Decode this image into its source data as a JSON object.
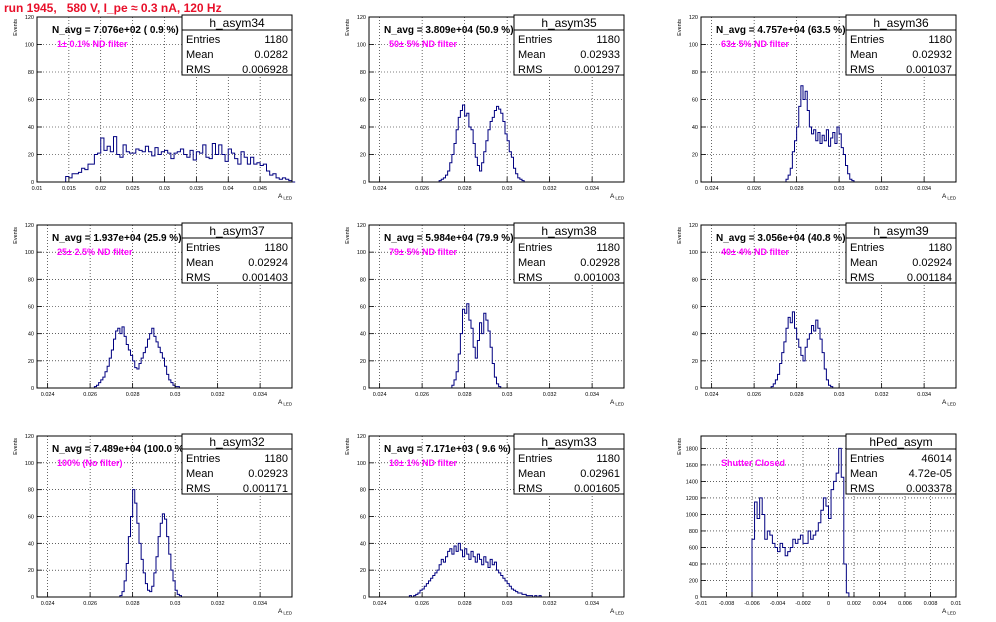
{
  "page_title": "run 1945,   580 V, I_pe ≈ 0.3 nA, 120 Hz",
  "colors": {
    "title": "#e8102a",
    "histogram": "#000080",
    "note": "#ff00ff",
    "frame": "#000000",
    "grid": "#000000"
  },
  "chart_data": [
    {
      "type": "bar",
      "name": "h_asym34",
      "navg_label": "N_avg = 7.076e+02 ( 0.9 %)",
      "note": "1± 0.1% ND filter",
      "stats": [
        [
          "Entries",
          "1180"
        ],
        [
          "Mean",
          "0.0282"
        ],
        [
          "RMS",
          "0.006928"
        ]
      ],
      "ylabel": "Events",
      "xlabel": "A_LED",
      "xlim": [
        0.01,
        0.05
      ],
      "ylim": [
        0,
        120
      ],
      "xticks": [
        "0.01",
        "0.015",
        "0.02",
        "0.025",
        "0.03",
        "0.035",
        "0.04",
        "0.045"
      ],
      "xtick_values": [
        0.01,
        0.015,
        0.02,
        0.025,
        0.03,
        0.035,
        0.04,
        0.045
      ],
      "yticks": [
        0,
        20,
        40,
        60,
        80,
        100,
        120
      ],
      "bin_start": 0.0125,
      "bin_width": 0.0005,
      "values": [
        0,
        0,
        0,
        0,
        4,
        3,
        6,
        6,
        7,
        10,
        9,
        13,
        13,
        20,
        21,
        32,
        23,
        26,
        22,
        33,
        20,
        18,
        27,
        22,
        21,
        21,
        24,
        23,
        22,
        26,
        22,
        19,
        25,
        20,
        22,
        23,
        21,
        17,
        21,
        22,
        24,
        20,
        18,
        23,
        16,
        22,
        21,
        27,
        18,
        17,
        28,
        20,
        27,
        20,
        15,
        24,
        21,
        17,
        13,
        22,
        18,
        13,
        18,
        13,
        14,
        12,
        13,
        8,
        5,
        6,
        3,
        2,
        3,
        2,
        1,
        0
      ]
    },
    {
      "type": "bar",
      "name": "h_asym35",
      "navg_label": "N_avg = 3.809e+04 (50.9 %)",
      "note": "50± 5% ND filter",
      "stats": [
        [
          "Entries",
          "1180"
        ],
        [
          "Mean",
          "0.02933"
        ],
        [
          "RMS",
          "0.001297"
        ]
      ],
      "ylabel": "Events",
      "xlabel": "A_LED",
      "xlim": [
        0.0235,
        0.0355
      ],
      "ylim": [
        0,
        120
      ],
      "xticks": [
        "0.024",
        "0.026",
        "0.028",
        "0.03",
        "0.032",
        "0.034"
      ],
      "xtick_values": [
        0.024,
        0.026,
        0.028,
        0.03,
        0.032,
        0.034
      ],
      "yticks": [
        0,
        20,
        40,
        60,
        80,
        100,
        120
      ],
      "bin_start": 0.0268,
      "bin_width": 0.0001,
      "values": [
        1,
        2,
        3,
        5,
        8,
        14,
        20,
        28,
        38,
        47,
        52,
        56,
        48,
        50,
        40,
        38,
        28,
        18,
        12,
        8,
        14,
        22,
        30,
        38,
        44,
        47,
        52,
        55,
        53,
        50,
        44,
        35,
        30,
        22,
        18,
        10,
        6,
        3,
        2,
        1
      ]
    },
    {
      "type": "bar",
      "name": "h_asym36",
      "navg_label": "N_avg = 4.757e+04 (63.5 %)",
      "note": "63± 5% ND filter",
      "stats": [
        [
          "Entries",
          "1180"
        ],
        [
          "Mean",
          "0.02932"
        ],
        [
          "RMS",
          "0.001037"
        ]
      ],
      "ylabel": "Events",
      "xlabel": "A_LED",
      "xlim": [
        0.0235,
        0.0355
      ],
      "ylim": [
        0,
        120
      ],
      "xticks": [
        "0.024",
        "0.026",
        "0.028",
        "0.03",
        "0.032",
        "0.034"
      ],
      "xtick_values": [
        0.024,
        0.026,
        0.028,
        0.03,
        0.032,
        0.034
      ],
      "yticks": [
        0,
        20,
        40,
        60,
        80,
        100,
        120
      ],
      "bin_start": 0.0275,
      "bin_width": 0.0001,
      "values": [
        2,
        5,
        10,
        22,
        30,
        40,
        55,
        70,
        60,
        66,
        52,
        40,
        35,
        38,
        30,
        36,
        28,
        34,
        30,
        38,
        26,
        32,
        36,
        28,
        40,
        35,
        25,
        20,
        12,
        6,
        2,
        1
      ]
    },
    {
      "type": "bar",
      "name": "h_asym37",
      "navg_label": "N_avg = 1.937e+04 (25.9 %)",
      "note": "25± 2.5% ND filter",
      "stats": [
        [
          "Entries",
          "1180"
        ],
        [
          "Mean",
          "0.02924"
        ],
        [
          "RMS",
          "0.001403"
        ]
      ],
      "ylabel": "Events",
      "xlabel": "A_LED",
      "xlim": [
        0.0235,
        0.0355
      ],
      "ylim": [
        0,
        120
      ],
      "xticks": [
        "0.024",
        "0.026",
        "0.028",
        "0.03",
        "0.032",
        "0.034"
      ],
      "xtick_values": [
        0.024,
        0.026,
        0.028,
        0.03,
        0.032,
        0.034
      ],
      "yticks": [
        0,
        20,
        40,
        60,
        80,
        100,
        120
      ],
      "bin_start": 0.0262,
      "bin_width": 0.0001,
      "values": [
        1,
        2,
        4,
        6,
        8,
        12,
        16,
        22,
        28,
        36,
        42,
        44,
        40,
        45,
        38,
        32,
        28,
        24,
        20,
        15,
        14,
        18,
        22,
        26,
        30,
        36,
        40,
        44,
        38,
        34,
        30,
        26,
        22,
        16,
        10,
        6,
        4,
        2,
        1,
        1,
        0
      ]
    },
    {
      "type": "bar",
      "name": "h_asym38",
      "navg_label": "N_avg = 5.984e+04 (79.9 %)",
      "note": "79± 5% ND filter",
      "stats": [
        [
          "Entries",
          "1180"
        ],
        [
          "Mean",
          "0.02928"
        ],
        [
          "RMS",
          "0.001003"
        ]
      ],
      "ylabel": "Events",
      "xlabel": "A_LED",
      "xlim": [
        0.0235,
        0.0355
      ],
      "ylim": [
        0,
        120
      ],
      "xticks": [
        "0.024",
        "0.026",
        "0.028",
        "0.03",
        "0.032",
        "0.034"
      ],
      "xtick_values": [
        0.024,
        0.026,
        0.028,
        0.03,
        0.032,
        0.034
      ],
      "yticks": [
        0,
        20,
        40,
        60,
        80,
        100,
        120
      ],
      "bin_start": 0.0274,
      "bin_width": 0.0001,
      "values": [
        2,
        6,
        12,
        25,
        40,
        58,
        55,
        62,
        50,
        44,
        30,
        22,
        35,
        48,
        40,
        55,
        50,
        42,
        30,
        18,
        8,
        3,
        1
      ]
    },
    {
      "type": "bar",
      "name": "h_asym39",
      "navg_label": "N_avg = 3.056e+04 (40.8 %)",
      "note": "40± 4% ND filter",
      "stats": [
        [
          "Entries",
          "1180"
        ],
        [
          "Mean",
          "0.02924"
        ],
        [
          "RMS",
          "0.001184"
        ]
      ],
      "ylabel": "Events",
      "xlabel": "A_LED",
      "xlim": [
        0.0235,
        0.0355
      ],
      "ylim": [
        0,
        120
      ],
      "xticks": [
        "0.024",
        "0.026",
        "0.028",
        "0.03",
        "0.032",
        "0.034"
      ],
      "xtick_values": [
        0.024,
        0.026,
        0.028,
        0.03,
        0.032,
        0.034
      ],
      "yticks": [
        0,
        20,
        40,
        60,
        80,
        100,
        120
      ],
      "bin_start": 0.0268,
      "bin_width": 0.0001,
      "values": [
        1,
        3,
        6,
        10,
        18,
        26,
        34,
        44,
        52,
        48,
        56,
        44,
        36,
        30,
        24,
        20,
        30,
        36,
        40,
        46,
        42,
        50,
        44,
        36,
        26,
        14,
        6,
        2,
        1
      ]
    },
    {
      "type": "bar",
      "name": "h_asym32",
      "navg_label": "N_avg = 7.489e+04 (100.0 %)",
      "note": "100% (No filter)",
      "stats": [
        [
          "Entries",
          "1180"
        ],
        [
          "Mean",
          "0.02923"
        ],
        [
          "RMS",
          "0.001171"
        ]
      ],
      "ylabel": "Events",
      "xlabel": "A_LED",
      "xlim": [
        0.0235,
        0.0355
      ],
      "ylim": [
        0,
        120
      ],
      "xticks": [
        "0.024",
        "0.026",
        "0.028",
        "0.03",
        "0.032",
        "0.034"
      ],
      "xtick_values": [
        0.024,
        0.026,
        0.028,
        0.03,
        0.032,
        0.034
      ],
      "yticks": [
        0,
        20,
        40,
        60,
        80,
        100,
        120
      ],
      "bin_start": 0.0274,
      "bin_width": 0.0001,
      "values": [
        1,
        4,
        12,
        25,
        45,
        60,
        80,
        70,
        55,
        40,
        28,
        18,
        10,
        5,
        4,
        8,
        18,
        30,
        45,
        55,
        62,
        58,
        45,
        32,
        20,
        12,
        5,
        2,
        1
      ]
    },
    {
      "type": "bar",
      "name": "h_asym33",
      "navg_label": "N_avg = 7.171e+03 ( 9.6 %)",
      "note": "10± 1% ND filter",
      "stats": [
        [
          "Entries",
          "1180"
        ],
        [
          "Mean",
          "0.02961"
        ],
        [
          "RMS",
          "0.001605"
        ]
      ],
      "ylabel": "Events",
      "xlabel": "A_LED",
      "xlim": [
        0.0235,
        0.0355
      ],
      "ylim": [
        0,
        120
      ],
      "xticks": [
        "0.024",
        "0.026",
        "0.028",
        "0.03",
        "0.032",
        "0.034"
      ],
      "xtick_values": [
        0.024,
        0.026,
        0.028,
        0.03,
        0.032,
        0.034
      ],
      "yticks": [
        0,
        20,
        40,
        60,
        80,
        100,
        120
      ],
      "bin_start": 0.0254,
      "bin_width": 0.0001,
      "values": [
        1,
        0,
        1,
        2,
        3,
        5,
        6,
        8,
        10,
        12,
        14,
        16,
        18,
        20,
        24,
        28,
        26,
        30,
        34,
        36,
        32,
        38,
        34,
        40,
        35,
        30,
        36,
        32,
        28,
        34,
        30,
        26,
        32,
        28,
        24,
        30,
        26,
        22,
        28,
        24,
        26,
        20,
        18,
        16,
        14,
        12,
        10,
        8,
        6,
        5,
        4,
        3,
        3,
        2,
        2,
        1,
        1,
        1,
        0,
        1,
        0,
        1
      ]
    },
    {
      "type": "bar",
      "name": "hPed_asym",
      "navg_label": "",
      "note": "Shutter Closed",
      "stats": [
        [
          "Entries",
          "46014"
        ],
        [
          "Mean",
          "4.72e-05"
        ],
        [
          "RMS",
          "0.003378"
        ]
      ],
      "ylabel": "Events",
      "xlabel": "A_LED",
      "xlim": [
        -0.01,
        0.01
      ],
      "ylim": [
        0,
        1950
      ],
      "xticks": [
        "-0.01",
        "-0.008",
        "-0.006",
        "-0.004",
        "-0.002",
        "0",
        "0.002",
        "0.004",
        "0.006",
        "0.008",
        "0.01"
      ],
      "xtick_values": [
        -0.01,
        -0.008,
        -0.006,
        -0.004,
        -0.002,
        0,
        0.002,
        0.004,
        0.006,
        0.008,
        0.01
      ],
      "yticks": [
        0,
        200,
        400,
        600,
        800,
        1000,
        1200,
        1400,
        1600,
        1800
      ],
      "bin_start": -0.0062,
      "bin_width": 0.0002,
      "values": [
        0,
        700,
        1150,
        950,
        1200,
        1000,
        700,
        800,
        750,
        650,
        600,
        550,
        650,
        600,
        500,
        550,
        600,
        700,
        650,
        700,
        750,
        650,
        650,
        800,
        700,
        750,
        800,
        900,
        1050,
        1200,
        1100,
        950,
        1300,
        1400,
        1500,
        1800,
        1450,
        400,
        50,
        0
      ]
    }
  ]
}
